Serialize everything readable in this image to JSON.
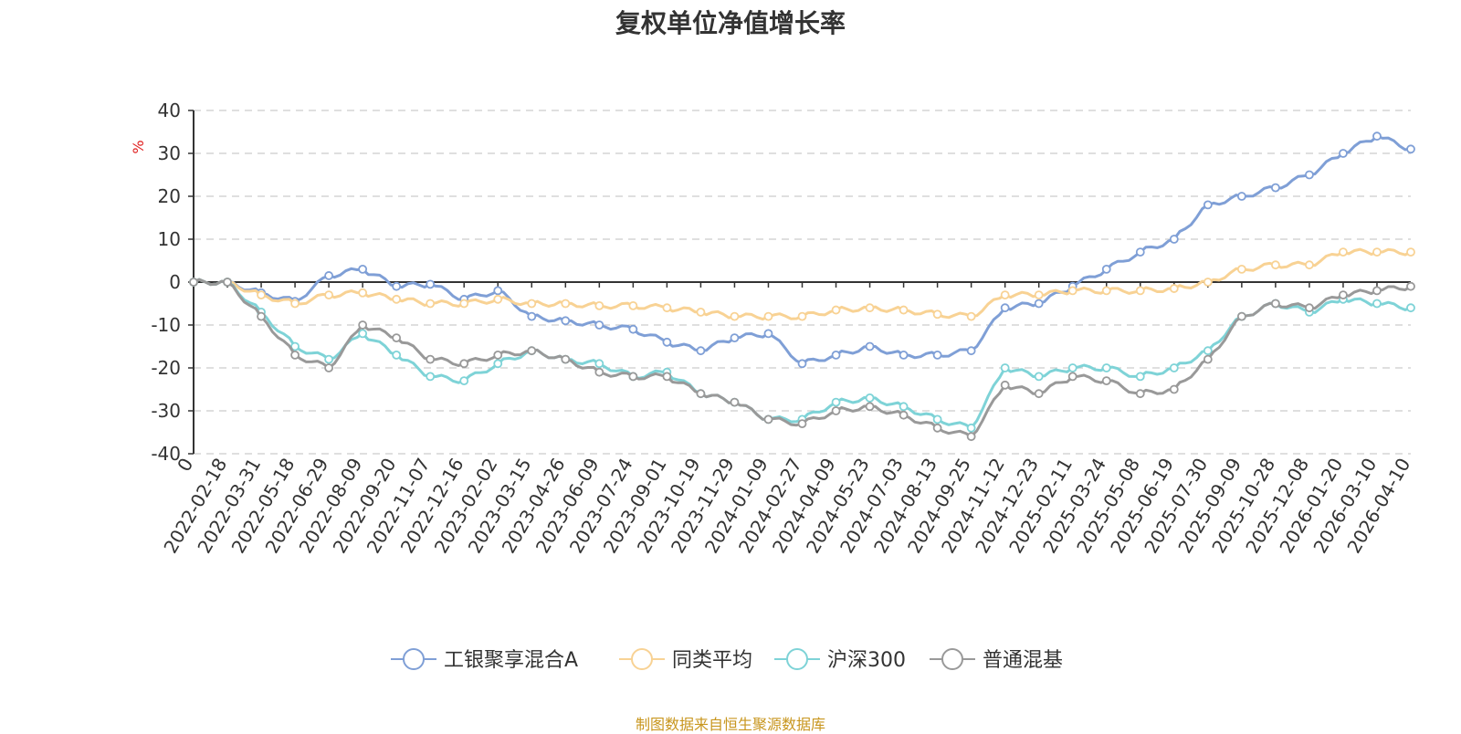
{
  "chart_data": {
    "type": "line",
    "title": "复权单位净值增长率",
    "ylabel": "%",
    "ylim": [
      -40,
      40
    ],
    "yticks": [
      40,
      30,
      20,
      10,
      0,
      -10,
      -20,
      -30,
      -40
    ],
    "x_origin_label": "0",
    "categories": [
      "2022-02-18",
      "2022-03-31",
      "2022-05-18",
      "2022-06-29",
      "2022-08-09",
      "2022-09-20",
      "2022-11-07",
      "2022-12-16",
      "2023-02-02",
      "2023-03-15",
      "2023-04-26",
      "2023-06-09",
      "2023-07-24",
      "2023-09-01",
      "2023-10-19",
      "2023-11-29",
      "2024-01-09",
      "2024-02-27",
      "2024-04-09",
      "2024-05-23",
      "2024-07-03",
      "2024-08-13",
      "2024-09-25",
      "2024-11-12",
      "2024-12-23",
      "2025-02-11",
      "2025-03-24",
      "2025-05-08",
      "2025-06-19",
      "2025-07-30",
      "2025-09-09",
      "2025-10-28",
      "2025-12-08",
      "2026-01-20",
      "2026-03-10",
      "2026-04-10"
    ],
    "series": [
      {
        "name": "工银聚享混合A",
        "color": "#7f9fd6",
        "values": [
          0,
          -2.5,
          -4.5,
          1.5,
          3,
          -1,
          -0.5,
          -4,
          -2,
          -8,
          -9,
          -10,
          -11,
          -14,
          -16,
          -13,
          -12,
          -19,
          -17,
          -15,
          -17,
          -17,
          -16,
          -6,
          -5,
          -1,
          3,
          7,
          10,
          18,
          20,
          22,
          25,
          30,
          34,
          31
        ]
      },
      {
        "name": "同类平均",
        "color": "#f8d294",
        "values": [
          0,
          -3,
          -5,
          -3,
          -2.5,
          -4,
          -5,
          -5,
          -4,
          -5,
          -5,
          -5.5,
          -5.5,
          -6,
          -7,
          -8,
          -8,
          -8,
          -6.5,
          -6,
          -6.5,
          -7.5,
          -8,
          -3,
          -3,
          -2,
          -2,
          -2,
          -1.5,
          0,
          3,
          4,
          4,
          7,
          7,
          7
        ]
      },
      {
        "name": "沪深300",
        "color": "#7ed3d7",
        "values": [
          0,
          -7,
          -15,
          -18,
          -12,
          -17,
          -22,
          -23,
          -19,
          -16,
          -18,
          -19,
          -22,
          -21,
          -26,
          -28,
          -32,
          -32,
          -28,
          -27,
          -29,
          -32,
          -34,
          -20,
          -22,
          -20,
          -20,
          -22,
          -20,
          -16,
          -8,
          -5,
          -7,
          -4,
          -5,
          -6
        ]
      },
      {
        "name": "普通混基",
        "color": "#999999",
        "values": [
          0,
          -8,
          -17,
          -20,
          -10,
          -13,
          -18,
          -19,
          -17,
          -16,
          -18,
          -21,
          -22,
          -22,
          -26,
          -28,
          -32,
          -33,
          -30,
          -29,
          -31,
          -34,
          -36,
          -24,
          -26,
          -22,
          -23,
          -26,
          -25,
          -18,
          -8,
          -5,
          -6,
          -3,
          -2,
          -1
        ]
      }
    ]
  },
  "source_text": "制图数据来自恒生聚源数据库",
  "source_color": "#c8961e"
}
